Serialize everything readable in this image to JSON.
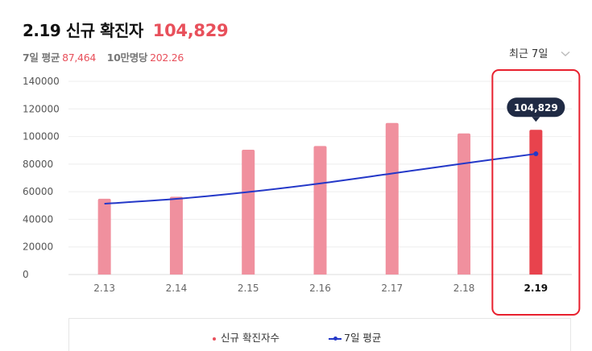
{
  "header": {
    "title": "2.19 신규 확진자",
    "title_value": "104,829",
    "avg_label": "7일 평균",
    "avg_value": "87,464",
    "per_label": "10만명당",
    "per_value": "202.26"
  },
  "period_selector": {
    "label": "최근 7일",
    "icon": "chevron-down-icon"
  },
  "colors": {
    "accent": "#e8505b",
    "bar": "#f0909e",
    "bar_highlight": "#e8434d",
    "line": "#2438c8",
    "tooltip_bg": "#1f2a44",
    "highlight_border": "#e8202e"
  },
  "chart_data": {
    "type": "bar",
    "categories": [
      "2.13",
      "2.14",
      "2.15",
      "2.16",
      "2.17",
      "2.18",
      "2.19"
    ],
    "series": [
      {
        "name": "신규 확진자수",
        "type": "bar",
        "values": [
          54900,
          56400,
          90400,
          93100,
          109800,
          102200,
          104829
        ]
      },
      {
        "name": "7일 평균",
        "type": "line",
        "values": [
          51300,
          54800,
          59800,
          66000,
          73200,
          80500,
          87464
        ]
      }
    ],
    "y_ticks": [
      "140000",
      "120000",
      "100000",
      "80000",
      "60000",
      "40000",
      "20000",
      "0"
    ],
    "ylim": [
      0,
      140000
    ],
    "highlight_index": 6,
    "tooltip": "104,829",
    "legend": [
      "신규 확진자수",
      "7일 평균"
    ],
    "legend_position": "bottom",
    "grid": true
  }
}
